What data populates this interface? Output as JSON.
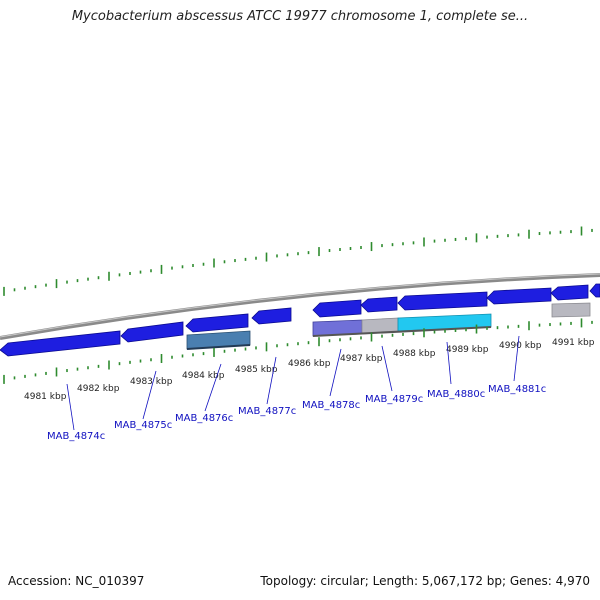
{
  "title": "Mycobacterium abscessus ATCC 19977 chromosome 1, complete se...",
  "footer": {
    "accession": "Accession: NC_010397",
    "summary": "Topology: circular; Length: 5,067,172 bp; Genes: 4,970"
  },
  "colors": {
    "backbone": "#8a8a8a",
    "ticks": "#2e8b2e",
    "gene_forward": "#1e1ee0",
    "label_blue": "#1010c0",
    "grey_feature": "#b8b8c0",
    "cyan_feature": "#22c8f0",
    "purple_feature": "#7070d8",
    "steel_feature": "#4a7fb0"
  },
  "kbp_labels": [
    "4981 kbp",
    "4982 kbp",
    "4983 kbp",
    "4984 kbp",
    "4985 kbp",
    "4986 kbp",
    "4987 kbp",
    "4988 kbp",
    "4989 kbp",
    "4990 kbp",
    "4991 kbp"
  ],
  "gene_labels": [
    "MAB_4874c",
    "MAB_4875c",
    "MAB_4876c",
    "MAB_4877c",
    "MAB_4878c",
    "MAB_4879c",
    "MAB_4880c",
    "MAB_4881c"
  ]
}
